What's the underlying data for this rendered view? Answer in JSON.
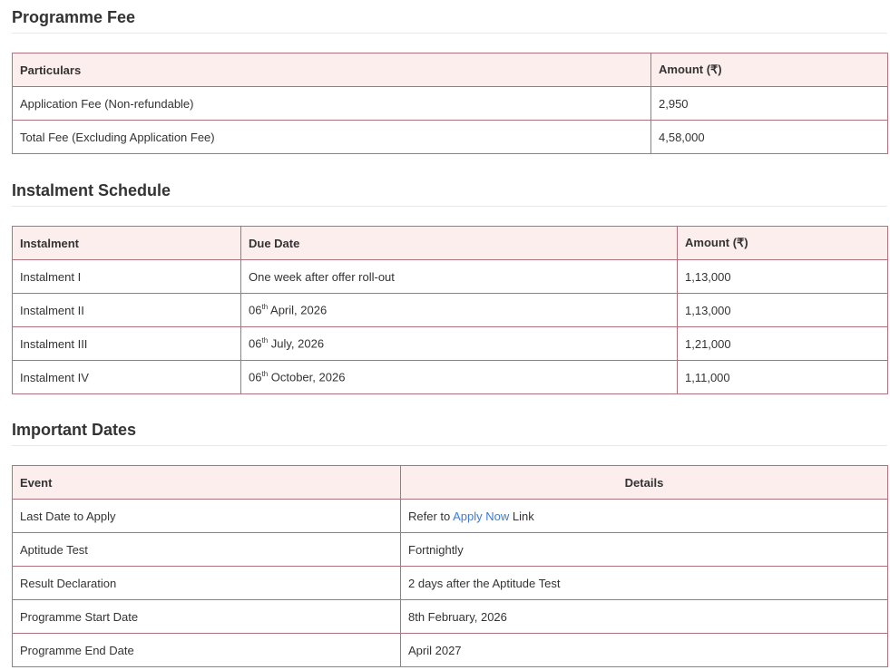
{
  "fee": {
    "title": "Programme Fee",
    "headers": [
      "Particulars",
      "Amount (₹)"
    ],
    "rows": [
      [
        "Application Fee (Non-refundable)",
        "2,950"
      ],
      [
        "Total Fee (Excluding Application Fee)",
        "4,58,000"
      ]
    ]
  },
  "schedule": {
    "title": "Instalment Schedule",
    "headers": [
      "Instalment",
      "Due Date",
      "Amount (₹)"
    ],
    "rows": [
      {
        "name": "Instalment I",
        "date": "One week after offer roll-out",
        "amount": "1,13,000"
      },
      {
        "name": "Instalment II",
        "day": "06",
        "sup": "th",
        "date": " April, 2026",
        "amount": "1,13,000"
      },
      {
        "name": "Instalment III",
        "day": "06",
        "sup": "th",
        "date": " July, 2026",
        "amount": "1,21,000"
      },
      {
        "name": "Instalment IV",
        "day": "06",
        "sup": "th",
        "date": " October, 2026",
        "amount": "1,11,000"
      }
    ]
  },
  "dates": {
    "title": "Important Dates",
    "headers": [
      "Event",
      "Details"
    ],
    "apply": {
      "event": "Last Date to Apply",
      "pre": "Refer to ",
      "link": "Apply Now",
      "post": " Link"
    },
    "rows": [
      [
        "Aptitude Test",
        "Fortnightly"
      ],
      [
        "Result Declaration",
        "2 days after the Aptitude Test"
      ],
      [
        "Programme Start Date",
        "8th February, 2026"
      ],
      [
        "Programme End Date",
        "April 2027"
      ]
    ]
  },
  "colors": {
    "border": "#b0707c",
    "header_bg": "#fdeeee",
    "link": "#3a7bd5"
  }
}
